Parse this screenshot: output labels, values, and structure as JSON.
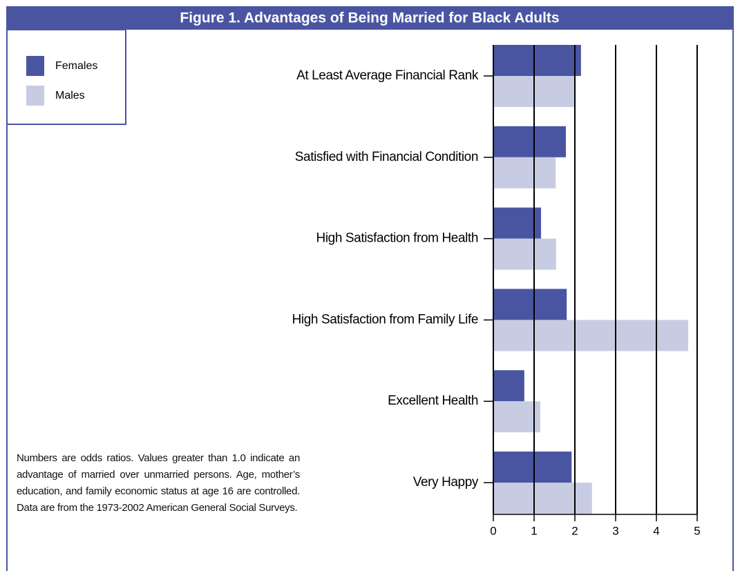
{
  "chart_data": {
    "type": "barh",
    "title": "Figure 1. Advantages of Being Married for Black Adults",
    "categories": [
      "At Least Average Financial Rank",
      "Satisfied with Financial Condition",
      "High Satisfaction from Health",
      "High Satisfaction from Family Life",
      "Excellent Health",
      "Very Happy"
    ],
    "series": [
      {
        "name": "Females",
        "color": "#4a55a2",
        "values": [
          2.15,
          1.78,
          1.17,
          1.8,
          0.76,
          1.92
        ]
      },
      {
        "name": "Males",
        "color": "#c8cce3",
        "values": [
          2.0,
          1.53,
          1.54,
          4.78,
          1.15,
          2.42
        ]
      }
    ],
    "xlim": [
      0,
      5
    ],
    "xticks": [
      0,
      1,
      2,
      3,
      4,
      5
    ],
    "grid": true,
    "note": "Numbers are odds ratios. Values greater than 1.0 indicate an advantage of married over unmarried persons. Age, mother’s education, and family economic status at age 16 are controlled. Data are from the 1973-2002 American General Social Surveys."
  }
}
